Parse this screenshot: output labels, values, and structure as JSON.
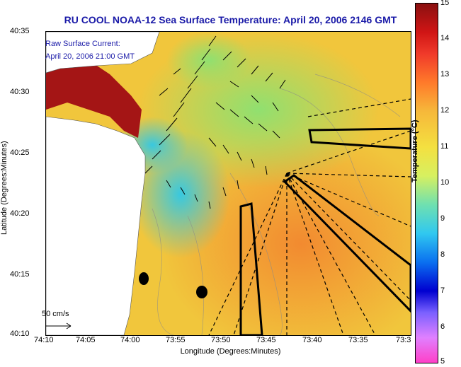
{
  "title": "RU COOL  NOAA-12  Sea Surface Temperature:  April 20, 2006 2146 GMT",
  "annotation": {
    "line1": "Raw Surface Current:",
    "line2": "April 20, 2006 21:00 GMT"
  },
  "scale_label": "50 cm/s",
  "axes": {
    "xlabel": "Longitude (Degrees:Minutes)",
    "ylabel": "Latitude (Degrees:Minutes)",
    "xticks": [
      "74:10",
      "74:05",
      "74:00",
      "73:55",
      "73:50",
      "73:45",
      "73:40",
      "73:35",
      "73:3"
    ],
    "yticks": [
      "40:35",
      "40:30",
      "40:25",
      "40:20",
      "40:15",
      "40:10"
    ]
  },
  "colorbar": {
    "label": "Temperature (°C)",
    "ticks": [
      "15",
      "14",
      "13",
      "12",
      "11",
      "10",
      "9",
      "8",
      "7",
      "6",
      "5"
    ]
  },
  "colors": {
    "title": "#1a1aa8",
    "land": "#ffffff",
    "hot": "#a01010",
    "ocean_warm": "#f6b040"
  }
}
